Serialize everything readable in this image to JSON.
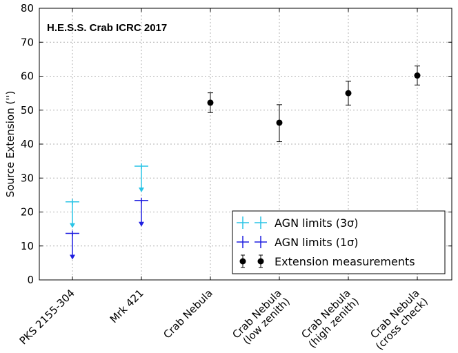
{
  "chart_data": {
    "type": "scatter",
    "title": "H.E.S.S. Crab ICRC 2017",
    "xlabel": "",
    "ylabel": "Source Extension ('')",
    "ylim": [
      0,
      80
    ],
    "yticks": [
      0,
      10,
      20,
      30,
      40,
      50,
      60,
      70,
      80
    ],
    "grid": true,
    "legend_position": "bottom-right",
    "categories": [
      {
        "line1": "PKS 2155-304",
        "line2": ""
      },
      {
        "line1": "Mrk 421",
        "line2": ""
      },
      {
        "line1": "Crab Nebula",
        "line2": ""
      },
      {
        "line1": "Crab Nebula",
        "line2": "(low zenith)"
      },
      {
        "line1": "Crab Nebula",
        "line2": "(high zenith)"
      },
      {
        "line1": "Crab Nebula",
        "line2": "(cross check)"
      }
    ],
    "series": [
      {
        "name": "AGN limits (3σ)",
        "kind": "upper_limit",
        "color": "#29c4e6",
        "points": [
          {
            "category_index": 0,
            "value": 23.0
          },
          {
            "category_index": 1,
            "value": 33.5
          }
        ]
      },
      {
        "name": "AGN limits (1σ)",
        "kind": "upper_limit",
        "color": "#1f1fe0",
        "points": [
          {
            "category_index": 0,
            "value": 13.7
          },
          {
            "category_index": 1,
            "value": 23.4
          }
        ]
      },
      {
        "name": "Extension measurements",
        "kind": "errorbar",
        "color": "#000000",
        "points": [
          {
            "category_index": 2,
            "value": 52.2,
            "err_low": 2.9,
            "err_high": 2.9
          },
          {
            "category_index": 3,
            "value": 46.3,
            "err_low": 5.6,
            "err_high": 5.3
          },
          {
            "category_index": 4,
            "value": 55.0,
            "err_low": 3.5,
            "err_high": 3.5
          },
          {
            "category_index": 5,
            "value": 60.2,
            "err_low": 2.8,
            "err_high": 2.8
          }
        ]
      }
    ]
  }
}
